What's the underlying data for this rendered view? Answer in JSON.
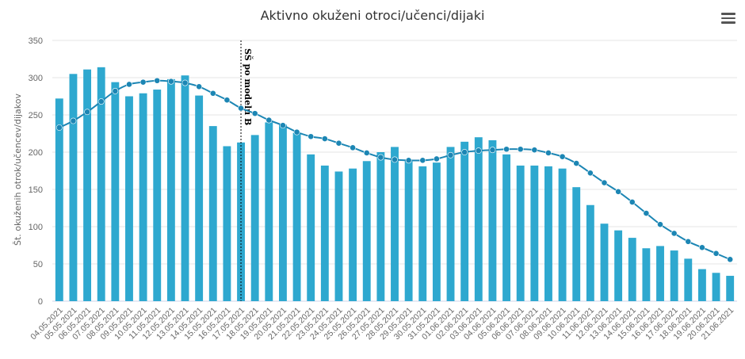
{
  "menu_icon": "hamburger-menu-icon",
  "colors": {
    "bar": "#2ea8cf",
    "line": "#1c86b4",
    "grid": "#e6e6e6",
    "axis": "#ccd6eb"
  },
  "chart_data": {
    "type": "bar",
    "title": "Aktivno okuženi otroci/učenci/dijaki",
    "xlabel": "",
    "ylabel": "Št. okuženih otrok/učencev/dijakov",
    "ylim": [
      0,
      350
    ],
    "yticks": [
      0,
      50,
      100,
      150,
      200,
      250,
      300,
      350
    ],
    "grid": true,
    "categories": [
      "04.05.2021",
      "05.05.2021",
      "06.05.2021",
      "07.05.2021",
      "08.05.2021",
      "09.05.2021",
      "10.05.2021",
      "11.05.2021",
      "12.05.2021",
      "13.05.2021",
      "14.05.2021",
      "15.05.2021",
      "16.05.2021",
      "17.05.2021",
      "18.05.2021",
      "19.05.2021",
      "20.05.2021",
      "21.05.2021",
      "22.05.2021",
      "23.05.2021",
      "24.05.2021",
      "25.05.2021",
      "26.05.2021",
      "27.05.2021",
      "28.05.2021",
      "29.05.2021",
      "30.05.2021",
      "31.05.2021",
      "01.06.2021",
      "02.06.2021",
      "03.06.2021",
      "04.06.2021",
      "05.06.2021",
      "06.06.2021",
      "07.06.2021",
      "08.06.2021",
      "09.06.2021",
      "10.06.2021",
      "11.06.2021",
      "12.06.2021",
      "13.06.2021",
      "14.06.2021",
      "15.06.2021",
      "16.06.2021",
      "17.06.2021",
      "18.06.2021",
      "19.06.2021",
      "20.06.2021",
      "21.06.2021"
    ],
    "series": [
      {
        "type": "bar",
        "values": [
          272,
          305,
          311,
          314,
          294,
          275,
          279,
          284,
          298,
          303,
          276,
          235,
          208,
          213,
          223,
          240,
          237,
          226,
          197,
          182,
          174,
          178,
          188,
          200,
          207,
          190,
          181,
          186,
          207,
          214,
          220,
          216,
          197,
          182,
          182,
          181,
          178,
          153,
          129,
          104,
          95,
          85,
          71,
          74,
          68,
          57,
          43,
          38,
          34
        ]
      },
      {
        "type": "line",
        "values": [
          233,
          242,
          254,
          268,
          282,
          291,
          294,
          296,
          295,
          293,
          288,
          279,
          270,
          259,
          252,
          243,
          236,
          227,
          221,
          218,
          212,
          206,
          199,
          193,
          190,
          189,
          189,
          191,
          196,
          200,
          202,
          203,
          204,
          204,
          203,
          199,
          194,
          185,
          172,
          159,
          147,
          133,
          118,
          103,
          91,
          80,
          72,
          64,
          56
        ]
      }
    ],
    "annotations": [
      {
        "x": "17.05.2021",
        "label": "SŠ po modelu B"
      }
    ]
  }
}
